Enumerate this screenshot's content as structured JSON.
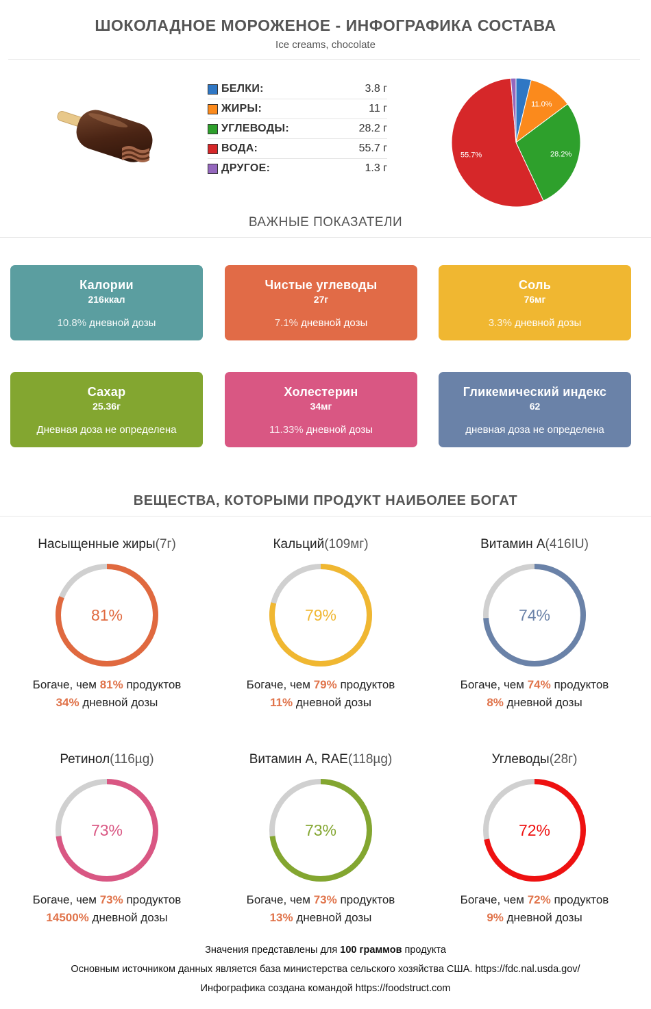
{
  "header": {
    "title": "ШОКОЛАДНОЕ МОРОЖЕНОЕ - ИНФОГРАФИКА СОСТАВА",
    "subtitle": "Ice creams, chocolate"
  },
  "macros": [
    {
      "name": "БЕЛКИ:",
      "value": "3.8 г",
      "color": "#2f77c4"
    },
    {
      "name": "ЖИРЫ:",
      "value": "11 г",
      "color": "#fb8a1c"
    },
    {
      "name": "УГЛЕВОДЫ:",
      "value": "28.2 г",
      "color": "#2ea02c"
    },
    {
      "name": "ВОДА:",
      "value": "55.7 г",
      "color": "#d62729"
    },
    {
      "name": "ДРУГОЕ:",
      "value": "1.3 г",
      "color": "#9467bd"
    }
  ],
  "chart_data": {
    "type": "pie",
    "slices": [
      {
        "label": "БЕЛКИ",
        "value": 3.8,
        "color": "#2f77c4",
        "data_label": ""
      },
      {
        "label": "ЖИРЫ",
        "value": 11.0,
        "color": "#fb8a1c",
        "data_label": "11.0%"
      },
      {
        "label": "УГЛЕВОДЫ",
        "value": 28.2,
        "color": "#2ea02c",
        "data_label": "28.2%"
      },
      {
        "label": "ВОДА",
        "value": 55.7,
        "color": "#d62729",
        "data_label": "55.7%"
      },
      {
        "label": "ДРУГОЕ",
        "value": 1.3,
        "color": "#9467bd",
        "data_label": ""
      }
    ]
  },
  "indicators_title": "ВАЖНЫЕ ПОКАЗАТЕЛИ",
  "cards": [
    {
      "name": "Калории",
      "value": "216ккал",
      "pct": "10.8%",
      "daily": "дневной дозы",
      "color": "#5b9ea0"
    },
    {
      "name": "Чистые углеводы",
      "value": "27г",
      "pct": "7.1%",
      "daily": "дневной дозы",
      "color": "#e16b47"
    },
    {
      "name": "Соль",
      "value": "76мг",
      "pct": "3.3%",
      "daily": "дневной дозы",
      "color": "#f0b731"
    },
    {
      "name": "Сахар",
      "value": "25.36г",
      "pct": "",
      "daily": "Дневная доза не определена",
      "color": "#83a630"
    },
    {
      "name": "Холестерин",
      "value": "34мг",
      "pct": "11.33%",
      "daily": "дневной дозы",
      "color": "#d95783"
    },
    {
      "name": "Гликемический индекс",
      "value": "62",
      "pct": "",
      "daily": "дневная доза не определена",
      "color": "#6a82a8"
    }
  ],
  "rich_title": "ВЕЩЕСТВА, КОТОРЫМИ ПРОДУКТ НАИБОЛЕЕ БОГАТ",
  "rich_items": [
    {
      "name": "Насыщенные жиры",
      "amount": "(7г)",
      "percent": 81,
      "percent_label": "81%",
      "richer_pre": "Богаче, чем",
      "richer_pct": "81%",
      "richer_post": "продуктов",
      "daily_pct": "34%",
      "daily_text": "дневной дозы",
      "color": "#e0693f"
    },
    {
      "name": "Кальций",
      "amount": "(109мг)",
      "percent": 79,
      "percent_label": "79%",
      "richer_pre": "Богаче, чем",
      "richer_pct": "79%",
      "richer_post": "продуктов",
      "daily_pct": "11%",
      "daily_text": "дневной дозы",
      "color": "#f0b731"
    },
    {
      "name": "Витамин A",
      "amount": "(416IU)",
      "percent": 74,
      "percent_label": "74%",
      "richer_pre": "Богаче, чем",
      "richer_pct": "74%",
      "richer_post": "продуктов",
      "daily_pct": "8%",
      "daily_text": "дневной дозы",
      "color": "#6a82a8"
    },
    {
      "name": "Ретинол",
      "amount": "(116µg)",
      "percent": 73,
      "percent_label": "73%",
      "richer_pre": "Богаче, чем",
      "richer_pct": "73%",
      "richer_post": "продуктов",
      "daily_pct": "14500%",
      "daily_text": "дневной дозы",
      "color": "#d95783"
    },
    {
      "name": "Витамин A, RAE",
      "amount": "(118µg)",
      "percent": 73,
      "percent_label": "73%",
      "richer_pre": "Богаче, чем",
      "richer_pct": "73%",
      "richer_post": "продуктов",
      "daily_pct": "13%",
      "daily_text": "дневной дозы",
      "color": "#83a630"
    },
    {
      "name": "Углеводы",
      "amount": "(28г)",
      "percent": 72,
      "percent_label": "72%",
      "richer_pre": "Богаче, чем",
      "richer_pct": "72%",
      "richer_post": "продуктов",
      "daily_pct": "9%",
      "daily_text": "дневной дозы",
      "color": "#ee1111"
    }
  ],
  "footer": {
    "line1_pre": "Значения представлены для",
    "line1_bold": "100 граммов",
    "line1_post": "продукта",
    "line2": "Основным источником данных является база министерства сельского хозяйства США. https://fdc.nal.usda.gov/",
    "line3": "Инфографика создана командой https://foodstruct.com"
  },
  "colors": {
    "ring_track": "#d0d0d0",
    "highlight": "#e0734a"
  }
}
